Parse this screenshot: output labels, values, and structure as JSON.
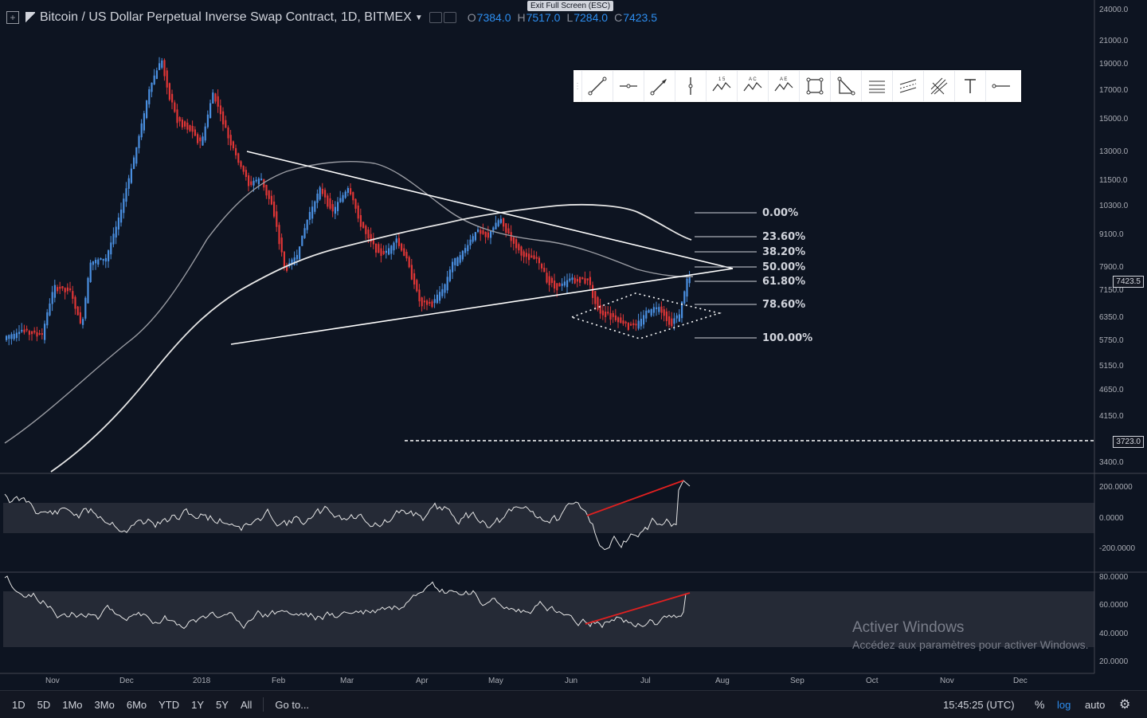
{
  "header": {
    "title": "Bitcoin / US Dollar Perpetual Inverse Swap Contract, 1D, BITMEX",
    "ohlc": {
      "o_label": "O",
      "o_value": "7384.0",
      "h_label": "H",
      "h_value": "7517.0",
      "l_label": "L",
      "l_value": "7284.0",
      "c_label": "C",
      "c_value": "7423.5"
    },
    "exit_fullscreen": "Exit Full Screen (ESC)"
  },
  "drawing_tools": [
    "trend-line",
    "horizontal-ray",
    "arrow",
    "vertical-line",
    "xabcd-pattern",
    "abcd-pattern",
    "elliott-wave",
    "rectangle",
    "triangle",
    "fib-retracement",
    "parallel-channel",
    "pitchfork",
    "text",
    "horizontal-line"
  ],
  "drawing_tool_labels": {
    "xabcd": "1 5",
    "abcd": "A C",
    "elliott": "A E"
  },
  "price_axis": [
    "24000.0",
    "21000.0",
    "19000.0",
    "17000.0",
    "15000.0",
    "13000.0",
    "11500.0",
    "10300.0",
    "9100.0",
    "7900.0",
    "7150.0",
    "6350.0",
    "5750.0",
    "5150.0",
    "4650.0",
    "4150.0",
    "3400.0"
  ],
  "price_badges": {
    "last": "7423.5",
    "dashed": "3723.0"
  },
  "osc1_axis": [
    "200.0000",
    "0.0000",
    "-200.0000"
  ],
  "osc2_axis": [
    "80.0000",
    "60.0000",
    "40.0000",
    "20.0000"
  ],
  "time_axis": [
    "Nov",
    "Dec",
    "2018",
    "Feb",
    "Mar",
    "Apr",
    "May",
    "Jun",
    "Jul",
    "Aug",
    "Sep",
    "Oct",
    "Nov",
    "Dec"
  ],
  "fib_levels": [
    "0.00%",
    "23.60%",
    "38.20%",
    "50.00%",
    "61.80%",
    "78.60%",
    "100.00%"
  ],
  "bottom_bar": {
    "ranges": [
      "1D",
      "5D",
      "1Mo",
      "3Mo",
      "6Mo",
      "YTD",
      "1Y",
      "5Y",
      "All"
    ],
    "goto": "Go to...",
    "time": "15:45:25 (UTC)",
    "percent": "%",
    "log": "log",
    "auto": "auto"
  },
  "watermark": {
    "line1": "Activer Windows",
    "line2": "Accédez aux paramètres pour activer Windows."
  },
  "colors": {
    "up": "#4a8fe0",
    "down": "#e03636",
    "accent": "#2d8ef0",
    "background": "#0d1421"
  }
}
